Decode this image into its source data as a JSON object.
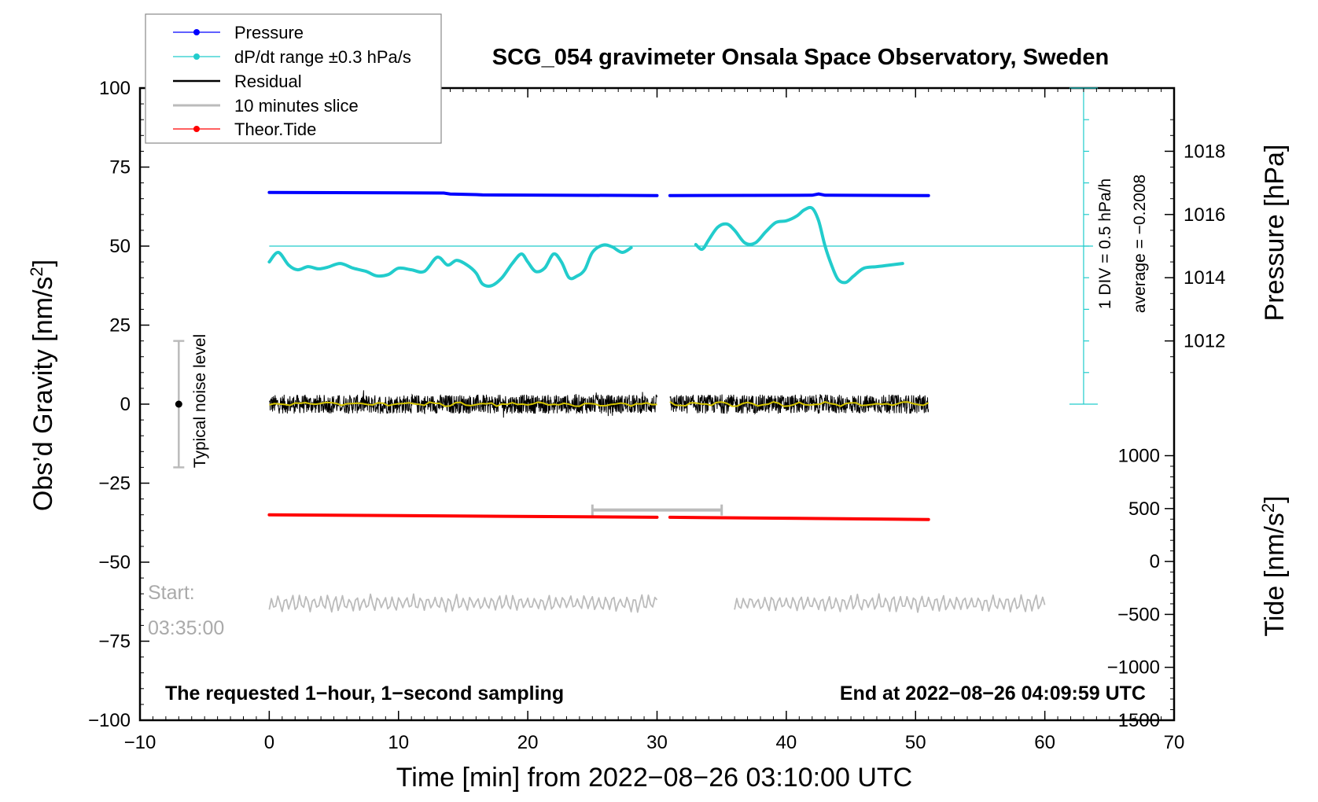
{
  "chart_data": {
    "type": "line",
    "title": "SCG_054 gravimeter Onsala Space Observatory, Sweden",
    "xlabel": "Time [min] from 2022−08−26 03:10:00 UTC",
    "ylabel_left": "Obs’d Gravity [nm/s",
    "ylabel_left_sup": "2",
    "ylabel_left_end": "]",
    "ylabel_right_pressure": "Pressure [hPa]",
    "ylabel_right_tide": "Tide [nm/s",
    "ylabel_right_tide_sup": "2",
    "ylabel_right_tide_end": "]",
    "xlim": [
      -10,
      70
    ],
    "ylim": [
      -100,
      100
    ],
    "x_ticks": [
      "−10",
      "0",
      "10",
      "20",
      "30",
      "40",
      "50",
      "60",
      "70"
    ],
    "y_ticks": [
      "100",
      "75",
      "50",
      "25",
      "0",
      "−25",
      "−50",
      "−75",
      "−100"
    ],
    "pressure_ticks": [
      "1018",
      "1016",
      "1014",
      "1012"
    ],
    "pressure_tick_values": [
      1018,
      1016,
      1014,
      1012
    ],
    "pressure_axis_map": {
      "hpa": [
        1012,
        1018
      ],
      "gravity": [
        20,
        80
      ]
    },
    "tide_ticks": [
      "1000",
      "500",
      "0",
      "−500",
      "−1000",
      "−1500"
    ],
    "tide_tick_values": [
      1000,
      500,
      0,
      -500,
      -1000,
      -1500
    ],
    "tide_axis_map": {
      "tide": [
        -1500,
        1000
      ],
      "gravity": [
        -100,
        -16.3
      ]
    },
    "legend": [
      {
        "label": "Pressure",
        "color": "#0000ff",
        "marker": true
      },
      {
        "label": "dP/dt range ±0.3 hPa/s",
        "color": "#22cccc",
        "marker": true
      },
      {
        "label": "Residual",
        "color": "#000000",
        "marker": false
      },
      {
        "label": "10 minutes slice",
        "color": "#bbbbbb",
        "marker": false
      },
      {
        "label": "Theor.Tide",
        "color": "#ff0000",
        "marker": true
      }
    ],
    "notes": {
      "bottom_left": "The requested 1−hour, 1−second sampling",
      "bottom_right": "End at 2022−08−26 04:09:59 UTC",
      "start_label": "Start:",
      "start_time": "03:35:00",
      "noise_label": "Typical noise level",
      "div_label": "1 DIV = 0.5 hPa/h",
      "average_label": "average = −0.2008"
    },
    "noise_bar": {
      "x": -7,
      "center": 0,
      "low": -20,
      "high": 20
    },
    "slice_bracket": {
      "x_start": 25,
      "x_end": 35,
      "y": -33.5
    },
    "dpdt_scale": {
      "x": 63,
      "y_start": 0,
      "y_end": 100,
      "divisions": 10,
      "reference": 50
    },
    "series": [
      {
        "name": "Pressure",
        "color": "#0000ff",
        "segments": [
          {
            "x": [
              0,
              13.5,
              14,
              16,
              16.5,
              30
            ],
            "y": [
              67,
              66.8,
              66.5,
              66.3,
              66.2,
              66
            ]
          },
          {
            "x": [
              31,
              42,
              42.5,
              43,
              51
            ],
            "y": [
              66,
              66.1,
              66.5,
              66.1,
              66
            ]
          }
        ]
      },
      {
        "name": "dP/dt",
        "color": "#22cccc",
        "segments": [
          {
            "x": [
              0,
              0.7,
              1.5,
              2.2,
              3,
              3.8,
              4.5,
              5.5,
              6.5,
              7.5,
              8.3,
              9.2,
              10,
              11,
              12,
              13,
              13.8,
              14.5,
              15.3,
              16,
              16.5,
              17.2,
              18,
              18.8,
              19.5,
              20,
              20.6,
              21.3,
              22,
              22.6,
              23.2,
              23.8,
              24.4,
              25,
              25.8,
              26.5,
              27.3,
              28
            ],
            "y": [
              45,
              48,
              44,
              42.5,
              43.5,
              42.8,
              43.3,
              44.5,
              43,
              42,
              40.6,
              41,
              43,
              42.5,
              42,
              46.5,
              44,
              45.5,
              44,
              41.5,
              38,
              37.5,
              40,
              44.5,
              47.5,
              45,
              42,
              43,
              47.5,
              45,
              40,
              40.5,
              42.5,
              48,
              50.3,
              49.8,
              48,
              49.5
            ]
          },
          {
            "x": [
              33,
              33.5,
              34,
              34.7,
              35.4,
              36,
              36.8,
              37.6,
              38.4,
              39.2,
              40,
              40.8,
              41.4,
              42,
              42.5,
              43,
              43.5,
              44,
              44.6,
              45.2,
              46,
              47,
              48,
              49
            ],
            "y": [
              50.5,
              49,
              52,
              56,
              57,
              55,
              51,
              51,
              54.5,
              57.5,
              58,
              59.5,
              61.5,
              62,
              58,
              50,
              44,
              39.5,
              38.5,
              40.5,
              43,
              43.5,
              44,
              44.5
            ]
          }
        ]
      },
      {
        "name": "Residual",
        "color": "#000000",
        "segments": [
          {
            "x_start": 0,
            "x_end": 30,
            "mean": 0,
            "amplitude": 3
          },
          {
            "x_start": 31,
            "x_end": 51,
            "mean": 0,
            "amplitude": 3
          }
        ]
      },
      {
        "name": "10 minutes slice",
        "color": "#bbbbbb",
        "segments": [
          {
            "x_start": 0,
            "x_end": 30,
            "mean": -63,
            "amplitude": 2.5
          },
          {
            "x_start": 36,
            "x_end": 60,
            "mean": -63,
            "amplitude": 2.5
          }
        ]
      },
      {
        "name": "Theor.Tide",
        "color": "#ff0000",
        "segments": [
          {
            "x": [
              0,
              30
            ],
            "y": [
              -35,
              -35.8
            ]
          },
          {
            "x": [
              31,
              51
            ],
            "y": [
              -35.8,
              -36.5
            ]
          }
        ]
      }
    ]
  }
}
